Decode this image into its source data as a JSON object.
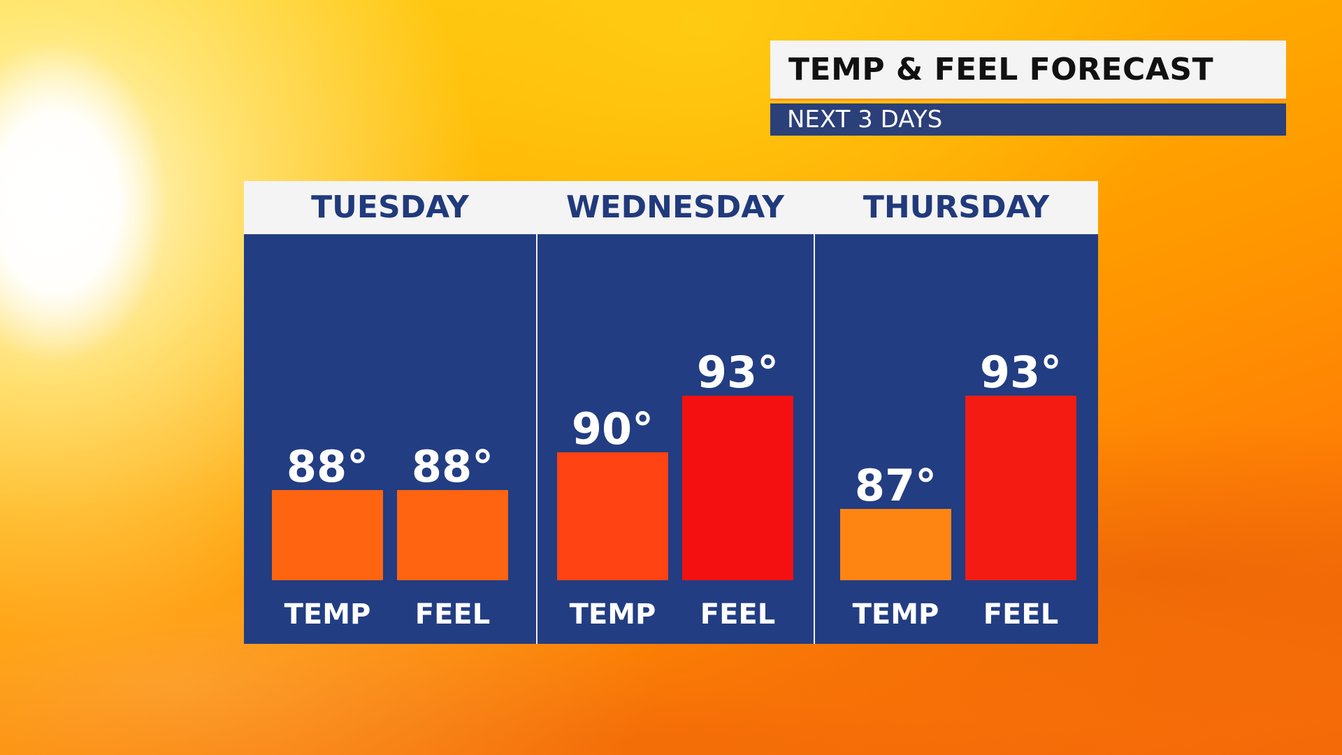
{
  "header": {
    "title": "TEMP & FEEL FORECAST",
    "subtitle": "NEXT 3 DAYS"
  },
  "colors": {
    "panel_blue": "#223d82",
    "header_white": "#f4f4f4",
    "day_text": "#213a7c",
    "subtitle_bar": "#2b3f79"
  },
  "chart_data": {
    "type": "bar",
    "days": [
      {
        "day": "TUESDAY",
        "bars": [
          {
            "label": "TEMP",
            "value": 88,
            "display": "88°",
            "color": "#ff6410"
          },
          {
            "label": "FEEL",
            "value": 88,
            "display": "88°",
            "color": "#ff6410"
          }
        ]
      },
      {
        "day": "WEDNESDAY",
        "bars": [
          {
            "label": "TEMP",
            "value": 90,
            "display": "90°",
            "color": "#ff4312"
          },
          {
            "label": "FEEL",
            "value": 93,
            "display": "93°",
            "color": "#f41010"
          }
        ]
      },
      {
        "day": "THURSDAY",
        "bars": [
          {
            "label": "TEMP",
            "value": 87,
            "display": "87°",
            "color": "#ff8512"
          },
          {
            "label": "FEEL",
            "value": 93,
            "display": "93°",
            "color": "#f41c12"
          }
        ]
      }
    ]
  }
}
